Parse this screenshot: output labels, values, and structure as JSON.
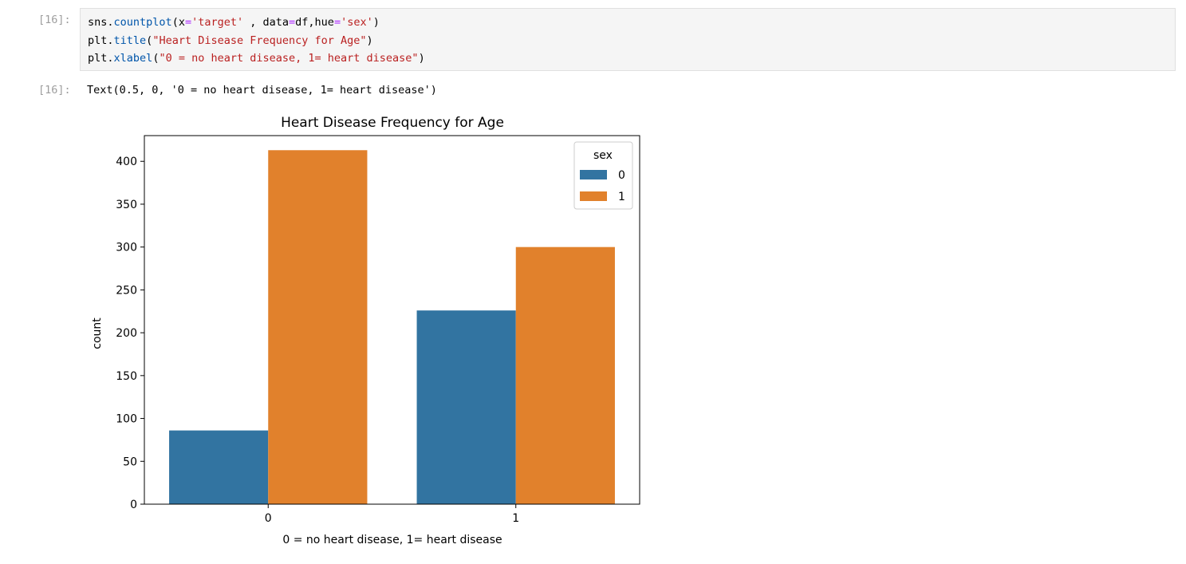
{
  "cell": {
    "in_prompt": "[16]:",
    "out_prompt": "[16]:",
    "code_lines": [
      [
        {
          "t": "sns",
          "c": "plain"
        },
        {
          "t": ".",
          "c": "plain"
        },
        {
          "t": "countplot",
          "c": "func"
        },
        {
          "t": "(x",
          "c": "plain"
        },
        {
          "t": "=",
          "c": "op"
        },
        {
          "t": "'target'",
          "c": "str"
        },
        {
          "t": " , data",
          "c": "plain"
        },
        {
          "t": "=",
          "c": "op"
        },
        {
          "t": "df,hue",
          "c": "plain"
        },
        {
          "t": "=",
          "c": "op"
        },
        {
          "t": "'sex'",
          "c": "str"
        },
        {
          "t": ")",
          "c": "plain"
        }
      ],
      [
        {
          "t": "plt",
          "c": "plain"
        },
        {
          "t": ".",
          "c": "plain"
        },
        {
          "t": "title",
          "c": "func"
        },
        {
          "t": "(",
          "c": "plain"
        },
        {
          "t": "\"Heart Disease Frequency for Age\"",
          "c": "str"
        },
        {
          "t": ")",
          "c": "plain"
        }
      ],
      [
        {
          "t": "plt",
          "c": "plain"
        },
        {
          "t": ".",
          "c": "plain"
        },
        {
          "t": "xlabel",
          "c": "func"
        },
        {
          "t": "(",
          "c": "plain"
        },
        {
          "t": "\"0 = no heart disease, 1= heart disease\"",
          "c": "str"
        },
        {
          "t": ")",
          "c": "plain"
        }
      ]
    ],
    "output_text": "Text(0.5, 0, '0 = no heart disease, 1= heart disease')"
  },
  "colors": {
    "series_0": "#3274a1",
    "series_1": "#e1812c",
    "func": "#0055aa",
    "op": "#aa22ff",
    "str": "#ba2121"
  },
  "chart_data": {
    "type": "bar",
    "title": "Heart Disease Frequency for Age",
    "xlabel": "0 = no heart disease, 1= heart disease",
    "ylabel": "count",
    "categories": [
      "0",
      "1"
    ],
    "series": [
      {
        "name": "0",
        "values": [
          86,
          226
        ]
      },
      {
        "name": "1",
        "values": [
          413,
          300
        ]
      }
    ],
    "ylim": [
      0,
      430
    ],
    "yticks": [
      0,
      50,
      100,
      150,
      200,
      250,
      300,
      350,
      400
    ],
    "legend_title": "sex",
    "legend_position": "top-right",
    "grid": false
  }
}
